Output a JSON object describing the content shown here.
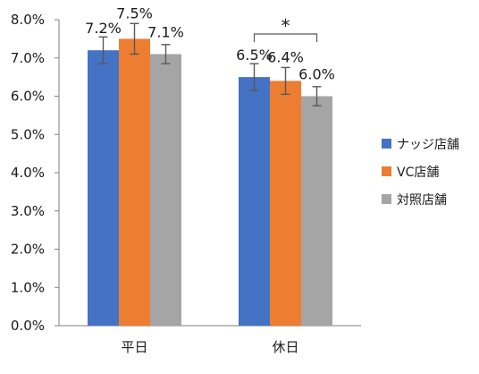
{
  "chart_data": {
    "type": "bar",
    "categories": [
      "平日",
      "休日"
    ],
    "series": [
      {
        "name": "ナッジ店舗",
        "values": [
          7.2,
          6.5
        ],
        "errors": [
          0.35,
          0.35
        ],
        "labels": [
          "7.2%",
          "6.5%"
        ],
        "color": "#4472c4"
      },
      {
        "name": "VC店舗",
        "values": [
          7.5,
          6.4
        ],
        "errors": [
          0.4,
          0.35
        ],
        "labels": [
          "7.5%",
          "6.4%"
        ],
        "color": "#ed7d31"
      },
      {
        "name": "対照店舗",
        "values": [
          7.1,
          6.0
        ],
        "errors": [
          0.25,
          0.25
        ],
        "labels": [
          "7.1%",
          "6.0%"
        ],
        "color": "#a5a5a5"
      }
    ],
    "ylim": [
      0,
      8
    ],
    "yticks": [
      "0.0%",
      "1.0%",
      "2.0%",
      "3.0%",
      "4.0%",
      "5.0%",
      "6.0%",
      "7.0%",
      "8.0%"
    ],
    "grid": false,
    "legend_position": "right",
    "annotation": {
      "text": "*",
      "category": "休日",
      "from_series": 0,
      "to_series": 2
    }
  }
}
